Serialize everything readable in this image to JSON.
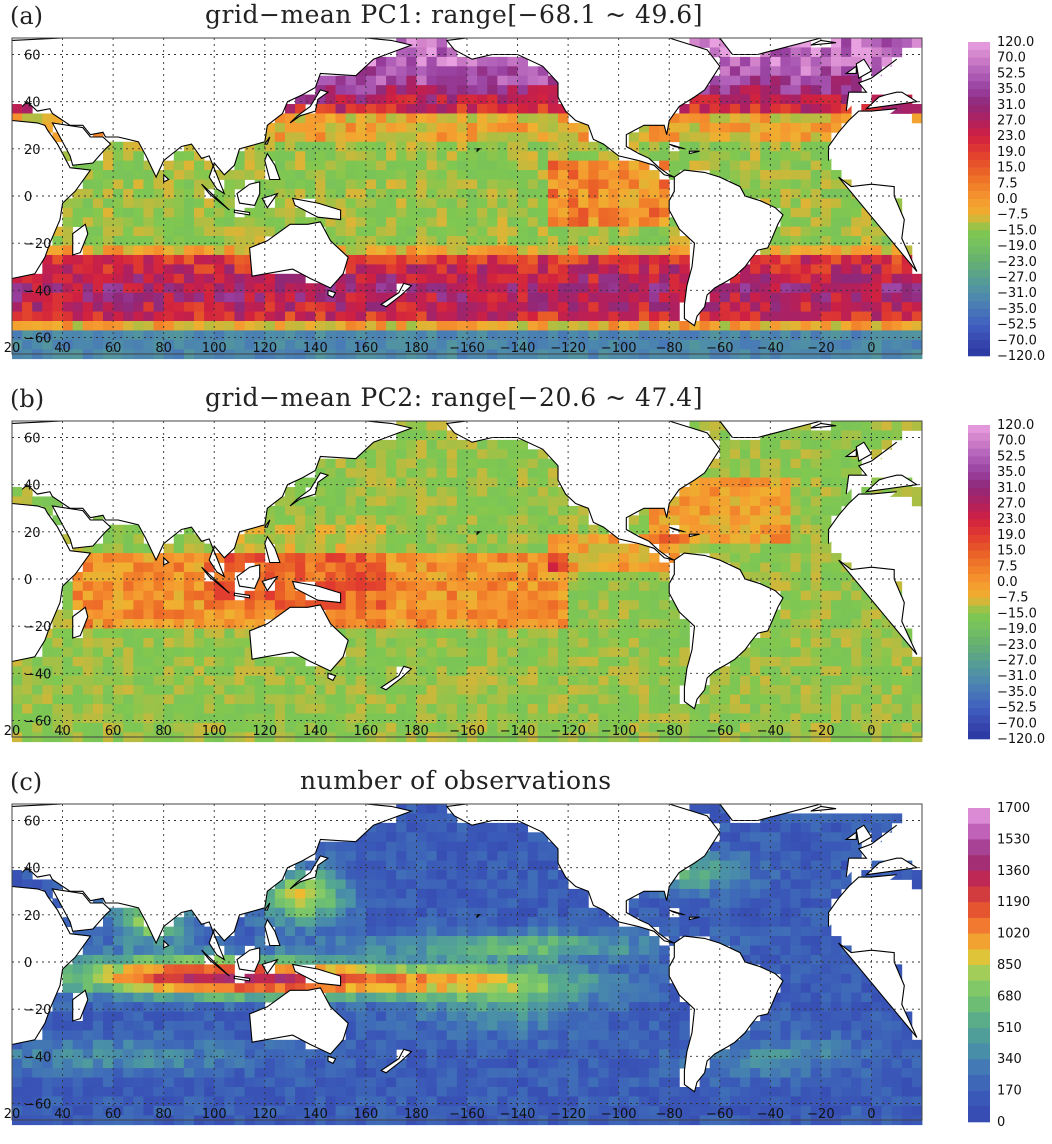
{
  "panels": [
    {
      "letter": "(a)",
      "title": "grid−mean PC1: range[−68.1 ~ 49.6]",
      "colorbar_labels": [
        "120.0",
        "70.0",
        "52.5",
        "35.0",
        "31.0",
        "27.0",
        "23.0",
        "19.0",
        "15.0",
        "7.5",
        "0.0",
        "−7.5",
        "−15.0",
        "−19.0",
        "−23.0",
        "−27.0",
        "−31.0",
        "−35.0",
        "−52.5",
        "−70.0",
        "−120.0"
      ]
    },
    {
      "letter": "(b)",
      "title": "grid−mean PC2: range[−20.6 ~ 47.4]",
      "colorbar_labels": [
        "120.0",
        "70.0",
        "52.5",
        "35.0",
        "31.0",
        "27.0",
        "23.0",
        "19.0",
        "15.0",
        "7.5",
        "0.0",
        "−7.5",
        "−15.0",
        "−19.0",
        "−23.0",
        "−27.0",
        "−31.0",
        "−35.0",
        "−52.5",
        "−70.0",
        "−120.0"
      ]
    },
    {
      "letter": "(c)",
      "title": "number of observations",
      "colorbar_labels": [
        "1700",
        "1530",
        "1360",
        "1190",
        "1020",
        "850",
        "680",
        "510",
        "340",
        "170",
        "0"
      ]
    }
  ],
  "chart_data": [
    {
      "type": "heatmap",
      "title": "grid−mean PC1: range[−68.1 ~ 49.6]",
      "x_ticks": [
        "20",
        "40",
        "60",
        "80",
        "100",
        "120",
        "140",
        "160",
        "180",
        "−160",
        "−140",
        "−120",
        "−100",
        "−80",
        "−60",
        "−40",
        "−20",
        "0"
      ],
      "y_ticks": [
        "60",
        "40",
        "20",
        "0",
        "−20",
        "−40",
        "−60"
      ],
      "grid": true,
      "legend": "right",
      "colorbar": {
        "min": -120.0,
        "max": 120.0
      },
      "value_range": [
        -68.1,
        49.6
      ],
      "colors": {
        "high": "#e080d8",
        "mid": "#f0b030",
        "zero": "#80c850",
        "low": "#3848b0"
      }
    },
    {
      "type": "heatmap",
      "title": "grid−mean PC2: range[−20.6 ~ 47.4]",
      "x_ticks": [
        "20",
        "40",
        "60",
        "80",
        "100",
        "120",
        "140",
        "160",
        "180",
        "−160",
        "−140",
        "−120",
        "−100",
        "−80",
        "−60",
        "−40",
        "−20",
        "0"
      ],
      "y_ticks": [
        "60",
        "40",
        "20",
        "0",
        "−20",
        "−40",
        "−60"
      ],
      "grid": true,
      "legend": "right",
      "colorbar": {
        "min": -120.0,
        "max": 120.0
      },
      "value_range": [
        -20.6,
        47.4
      ]
    },
    {
      "type": "heatmap",
      "title": "number of observations",
      "x_ticks": [
        "20",
        "40",
        "60",
        "80",
        "100",
        "120",
        "140",
        "160",
        "180",
        "−160",
        "−140",
        "−120",
        "−100",
        "−80",
        "−60",
        "−40",
        "−20",
        "0"
      ],
      "y_ticks": [
        "60",
        "40",
        "20",
        "0",
        "−20",
        "−40",
        "−60"
      ],
      "grid": true,
      "legend": "right",
      "colorbar": {
        "min": 0,
        "max": 1700
      }
    }
  ]
}
